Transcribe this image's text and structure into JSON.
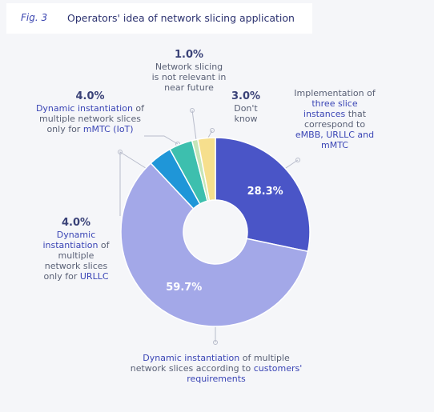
{
  "chart_data": {
    "type": "donut",
    "figure_label": "Fig. 3",
    "title": "Operators' idea of network slicing application",
    "categories": [
      [
        {
          "text": "Implementation of ",
          "highlight": false
        },
        {
          "text": "three slice instances",
          "highlight": true
        },
        {
          "text": " that correspond to ",
          "highlight": false
        },
        {
          "text": "eMBB, URLLC and mMTC",
          "highlight": true
        }
      ],
      [
        {
          "text": "Dynamic instantiation",
          "highlight": true
        },
        {
          "text": " of multiple network slices according to ",
          "highlight": false
        },
        {
          "text": "customers' requirements",
          "highlight": true
        }
      ],
      [
        {
          "text": "Dynamic instantiation",
          "highlight": true
        },
        {
          "text": " of multiple network slices only for ",
          "highlight": false
        },
        {
          "text": "URLLC",
          "highlight": true
        }
      ],
      [
        {
          "text": "Dynamic instantiation",
          "highlight": true
        },
        {
          "text": " of multiple network slices only for ",
          "highlight": false
        },
        {
          "text": "mMTC (IoT)",
          "highlight": true
        }
      ],
      [
        {
          "text": "Network slicing is not relevant in near future",
          "highlight": false
        }
      ],
      [
        {
          "text": "Don't know",
          "highlight": false
        }
      ]
    ],
    "values": [
      28.3,
      59.7,
      4.0,
      4.0,
      1.0,
      3.0
    ],
    "value_labels": [
      "28.3%",
      "59.7%",
      "4.0%",
      "4.0%",
      "1.0%",
      "3.0%"
    ],
    "colors": [
      "#4a55c7",
      "#a3a8e8",
      "#1f96d8",
      "#3dbfae",
      "#c5e5b8",
      "#f6df8d"
    ]
  }
}
